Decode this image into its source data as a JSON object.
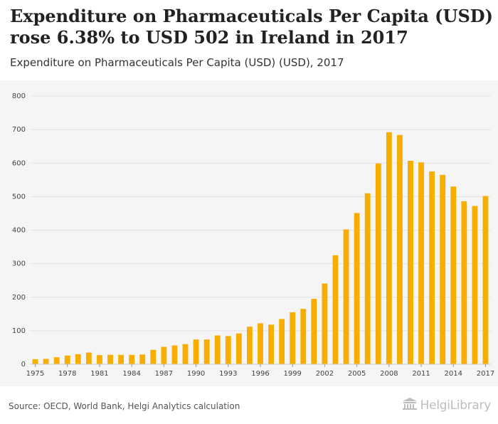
{
  "header": {
    "title": "Expenditure on Pharmaceuticals Per Capita (USD) rose 6.38% to USD 502 in Ireland in 2017",
    "subtitle": "Expenditure on Pharmaceuticals Per Capita (USD) (USD), 2017"
  },
  "footer": {
    "source": "Source: OECD, World Bank, Helgi Analytics calculation",
    "logo_text": "HelgiLibrary"
  },
  "colors": {
    "bar": "#F7AE00",
    "grid": "#e2e2e2",
    "axis_text": "#444444"
  },
  "chart_data": {
    "type": "bar",
    "title": "Expenditure on Pharmaceuticals Per Capita (USD) rose 6.38% to USD 502 in Ireland in 2017",
    "subtitle": "Expenditure on Pharmaceuticals Per Capita (USD) (USD), 2017",
    "categories": [
      "1975",
      "1976",
      "1977",
      "1978",
      "1979",
      "1980",
      "1981",
      "1982",
      "1983",
      "1984",
      "1985",
      "1986",
      "1987",
      "1988",
      "1989",
      "1990",
      "1991",
      "1992",
      "1993",
      "1994",
      "1995",
      "1996",
      "1997",
      "1998",
      "1999",
      "2000",
      "2001",
      "2002",
      "2003",
      "2004",
      "2005",
      "2006",
      "2007",
      "2008",
      "2009",
      "2010",
      "2011",
      "2012",
      "2013",
      "2014",
      "2015",
      "2016",
      "2017"
    ],
    "values": [
      15,
      16,
      21,
      26,
      30,
      35,
      27,
      28,
      28,
      28,
      29,
      43,
      52,
      56,
      60,
      74,
      74,
      86,
      84,
      92,
      112,
      122,
      118,
      135,
      155,
      165,
      195,
      241,
      325,
      402,
      451,
      510,
      599,
      692,
      684,
      607,
      602,
      575,
      565,
      530,
      486,
      472,
      502
    ],
    "tick_labels": [
      "1975",
      "1978",
      "1981",
      "1984",
      "1987",
      "1990",
      "1993",
      "1996",
      "1999",
      "2002",
      "2005",
      "2008",
      "2011",
      "2014",
      "2017"
    ],
    "yticks": [
      0,
      100,
      200,
      300,
      400,
      500,
      600,
      700,
      800
    ],
    "ylim": [
      0,
      800
    ],
    "grid": true,
    "legend": "none"
  }
}
